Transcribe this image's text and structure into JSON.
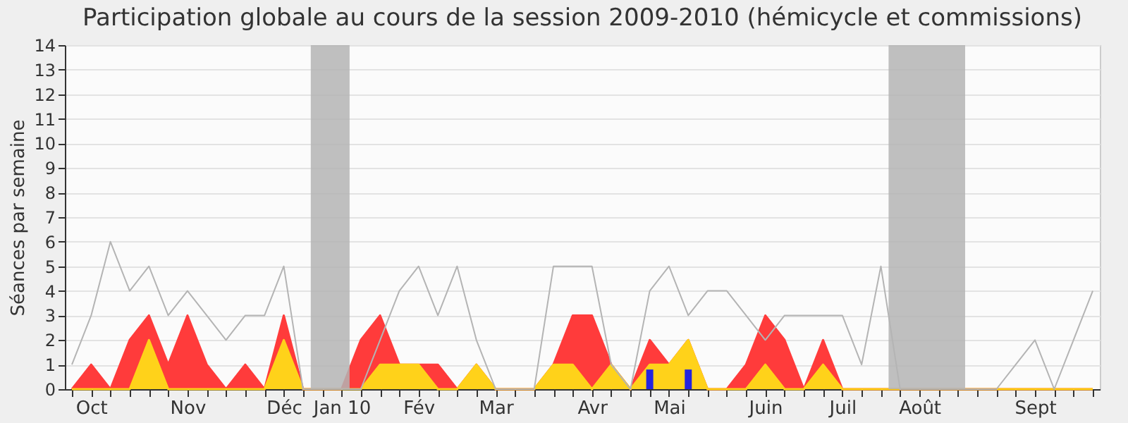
{
  "chart_data": {
    "type": "area",
    "title": "Participation globale au cours de la session 2009-2010 (hémicycle et commissions)",
    "ylabel": "Séances par semaine",
    "categories": [
      null,
      "Oct",
      null,
      null,
      null,
      null,
      "Nov",
      null,
      null,
      null,
      null,
      "Déc",
      null,
      null,
      "Jan 10",
      null,
      null,
      null,
      "Fév",
      null,
      null,
      null,
      "Mar",
      null,
      null,
      null,
      null,
      "Avr",
      null,
      null,
      null,
      "Mai",
      null,
      null,
      null,
      null,
      "Juin",
      null,
      null,
      null,
      "Juil",
      null,
      null,
      null,
      "Août",
      null,
      null,
      null,
      null,
      null,
      "Sept",
      null,
      null,
      null
    ],
    "series": [
      {
        "color": "#ff3b3b",
        "values": [
          0,
          1,
          0,
          2,
          3,
          1,
          3,
          1,
          0,
          1,
          0,
          3,
          0,
          0,
          0,
          2,
          3,
          1,
          1,
          1,
          0,
          1,
          0,
          0,
          0,
          1,
          3,
          3,
          1,
          0,
          2,
          1,
          2,
          0,
          0,
          1,
          3,
          2,
          0,
          2,
          0,
          0,
          0,
          0,
          0,
          0,
          0,
          0,
          0,
          0,
          0,
          0,
          0,
          0
        ]
      },
      {
        "color": "#ffd21a",
        "values": [
          0,
          0,
          0,
          0,
          2,
          0,
          0,
          0,
          0,
          0,
          0,
          2,
          0,
          0,
          0,
          0,
          1,
          1,
          1,
          0,
          0,
          1,
          0,
          0,
          0,
          1,
          1,
          0,
          1,
          0,
          1,
          1,
          2,
          0,
          0,
          0,
          1,
          0,
          0,
          1,
          0,
          0,
          0,
          0,
          0,
          0,
          0,
          0,
          0,
          0,
          0,
          0,
          0,
          0
        ]
      },
      {
        "type": "line",
        "color": "#b4b4b4",
        "values": [
          1,
          3,
          6,
          4,
          5,
          3,
          4,
          3,
          2,
          3,
          3,
          5,
          0,
          0,
          0,
          0,
          2,
          4,
          5,
          3,
          5,
          2,
          0,
          0,
          0,
          5,
          5,
          5,
          1,
          0,
          4,
          5,
          3,
          4,
          4,
          3,
          2,
          3,
          3,
          3,
          3,
          1,
          5,
          0,
          0,
          0,
          0,
          0,
          0,
          1,
          2,
          0,
          2,
          4
        ]
      },
      {
        "type": "bar",
        "color": "#2424e0",
        "values": [
          null,
          null,
          null,
          null,
          null,
          null,
          null,
          null,
          null,
          null,
          null,
          null,
          null,
          null,
          null,
          null,
          null,
          null,
          null,
          null,
          null,
          null,
          null,
          null,
          null,
          null,
          null,
          null,
          null,
          null,
          0.8,
          null,
          0.8,
          null,
          null,
          null,
          null,
          null,
          null,
          null,
          null,
          null,
          null,
          null,
          null,
          null,
          null,
          null,
          null,
          null,
          null,
          null,
          null,
          null
        ]
      }
    ],
    "ylim": [
      0,
      14
    ],
    "yticks": [
      0,
      1,
      2,
      3,
      4,
      5,
      6,
      7,
      8,
      9,
      10,
      11,
      12,
      13,
      14
    ],
    "grid": "y"
  }
}
